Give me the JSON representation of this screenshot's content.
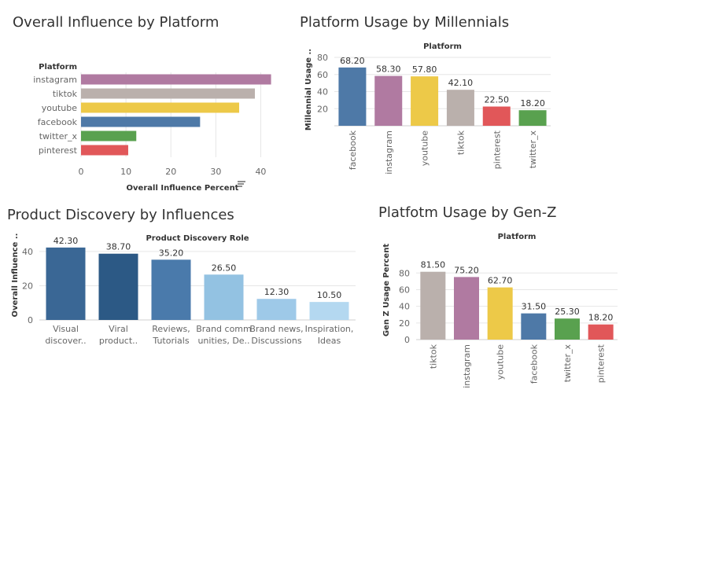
{
  "chart_data": [
    {
      "id": "influence",
      "type": "bar",
      "orientation": "horizontal",
      "title": "Overall Influence by Platform",
      "header": "Platform",
      "xlabel": "Overall Influence Percent",
      "categories": [
        "instagram",
        "tiktok",
        "youtube",
        "facebook",
        "twitter_x",
        "pinterest"
      ],
      "values": [
        42.3,
        38.7,
        35.2,
        26.5,
        12.3,
        10.5
      ],
      "colors": [
        "#b07aa1",
        "#bab0ac",
        "#edc948",
        "#4e79a7",
        "#59a14f",
        "#e15759"
      ],
      "ticks": [
        0,
        10,
        20,
        30,
        40
      ],
      "xlim": [
        0,
        45
      ],
      "grid": true,
      "sort_icon": "sort-descending-icon"
    },
    {
      "id": "millennials",
      "type": "bar",
      "title": "Platform Usage by Millennials",
      "header": "Platform",
      "ylabel": "Millennial Usage ..",
      "categories": [
        "facebook",
        "instagram",
        "youtube",
        "tiktok",
        "pinterest",
        "twitter_x"
      ],
      "values": [
        68.2,
        58.3,
        57.8,
        42.1,
        22.5,
        18.2
      ],
      "labels": [
        "68.20",
        "58.30",
        "57.80",
        "42.10",
        "22.50",
        "18.20"
      ],
      "colors": [
        "#4e79a7",
        "#b07aa1",
        "#edc948",
        "#bab0ac",
        "#e15759",
        "#59a14f"
      ],
      "ticks": [
        20,
        40,
        60,
        80
      ],
      "ylim": [
        0,
        80
      ],
      "grid": true
    },
    {
      "id": "discovery",
      "type": "bar",
      "title": "Product Discovery by Influences",
      "header": "Product Discovery Role",
      "ylabel": "Overall Influence ..",
      "categories": [
        [
          "Visual",
          "discover.."
        ],
        [
          "Viral",
          "product.."
        ],
        [
          "Reviews,",
          "Tutorials"
        ],
        [
          "Brand comm",
          "unities, De.."
        ],
        [
          "Brand news,",
          "Discussions"
        ],
        [
          "Inspiration,",
          "Ideas"
        ]
      ],
      "values": [
        42.3,
        38.7,
        35.2,
        26.5,
        12.3,
        10.5
      ],
      "labels": [
        "42.30",
        "38.70",
        "35.20",
        "26.50",
        "12.30",
        "10.50"
      ],
      "colors": [
        "#3a6795",
        "#2c5985",
        "#4a7aab",
        "#93c2e2",
        "#9ec9e8",
        "#b4d8f0"
      ],
      "ticks": [
        0,
        20,
        40
      ],
      "ylim": [
        0,
        45
      ],
      "grid": true
    },
    {
      "id": "genz",
      "type": "bar",
      "title": "Platfotm Usage by Gen-Z",
      "header": "Platform",
      "ylabel": "Gen Z Usage Percent",
      "categories": [
        "tiktok",
        "instagram",
        "youtube",
        "facebook",
        "twitter_x",
        "pinterest"
      ],
      "values": [
        81.5,
        75.2,
        62.7,
        31.5,
        25.3,
        18.2
      ],
      "labels": [
        "81.50",
        "75.20",
        "62.70",
        "31.50",
        "25.30",
        "18.20"
      ],
      "colors": [
        "#bab0ac",
        "#b07aa1",
        "#edc948",
        "#4e79a7",
        "#59a14f",
        "#e15759"
      ],
      "ticks": [
        0,
        20,
        40,
        60,
        80
      ],
      "ylim": [
        0,
        85
      ],
      "grid": true
    }
  ]
}
